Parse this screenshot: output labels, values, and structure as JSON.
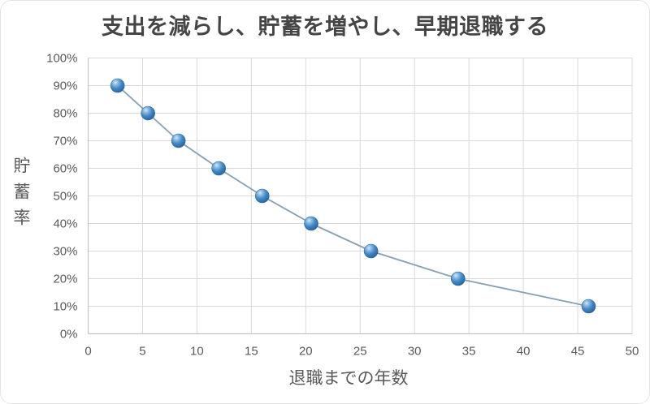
{
  "page": {
    "background": "#ffffff",
    "border_color": "#e4e4e4"
  },
  "chart_data": {
    "type": "line",
    "title": "支出を減らし、貯蓄を増やし、早期退職する",
    "xlabel": "退職までの年数",
    "ylabel": "貯蓄率",
    "x": [
      2.7,
      5.5,
      8.3,
      12,
      16,
      20.5,
      26,
      34,
      46
    ],
    "y": [
      90,
      80,
      70,
      60,
      50,
      40,
      30,
      20,
      10
    ],
    "xlim": [
      0,
      50
    ],
    "ylim": [
      0,
      100
    ],
    "xticks": [
      0,
      5,
      10,
      15,
      20,
      25,
      30,
      35,
      40,
      45,
      50
    ],
    "xtick_labels": [
      "0",
      "5",
      "10",
      "15",
      "20",
      "25",
      "30",
      "35",
      "40",
      "45",
      "50"
    ],
    "yticks": [
      0,
      10,
      20,
      30,
      40,
      50,
      60,
      70,
      80,
      90,
      100
    ],
    "ytick_labels": [
      "0%",
      "10%",
      "20%",
      "30%",
      "40%",
      "50%",
      "60%",
      "70%",
      "80%",
      "90%",
      "100%"
    ],
    "grid": true,
    "legend": false,
    "marker_style": "glossy-sphere",
    "colors": {
      "title": "#454545",
      "tick_label": "#595959",
      "axis_title": "#595959",
      "gridline": "#d9d9d9",
      "axis_line": "#bfbfbf",
      "line": "#87a0b4",
      "marker_highlight": "#d3e9f8",
      "marker_light": "#8cbde4",
      "marker_main": "#4287c4",
      "marker_mid_dark": "#2f6ca6",
      "marker_dark": "#265a8c",
      "marker_stroke": "#2f6da3"
    }
  }
}
